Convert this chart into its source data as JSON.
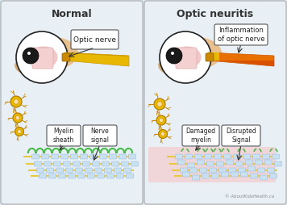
{
  "bg_color": "#d8e8f0",
  "panel_bg": "#e8f0f5",
  "left_title": "Normal",
  "right_title": "Optic neuritis",
  "eye_color_outer": "#f5c8a0",
  "eye_white": "#f8e8e8",
  "nerve_yellow": "#e8b800",
  "nerve_orange": "#d04000",
  "myelin_green": "#44bb44",
  "axon_blue": "#a0c8e8",
  "neuron_yellow": "#e8b800",
  "callout_bg": "#ffffff",
  "watermark": "© AboutKidsHealth.ca",
  "labels_left": [
    "Myelin\nsheath",
    "Nerve\nsignal"
  ],
  "labels_right": [
    "Damaged\nmyelin",
    "Disrupted\nSignal"
  ],
  "pink_inflammation": "#ffb0b0"
}
